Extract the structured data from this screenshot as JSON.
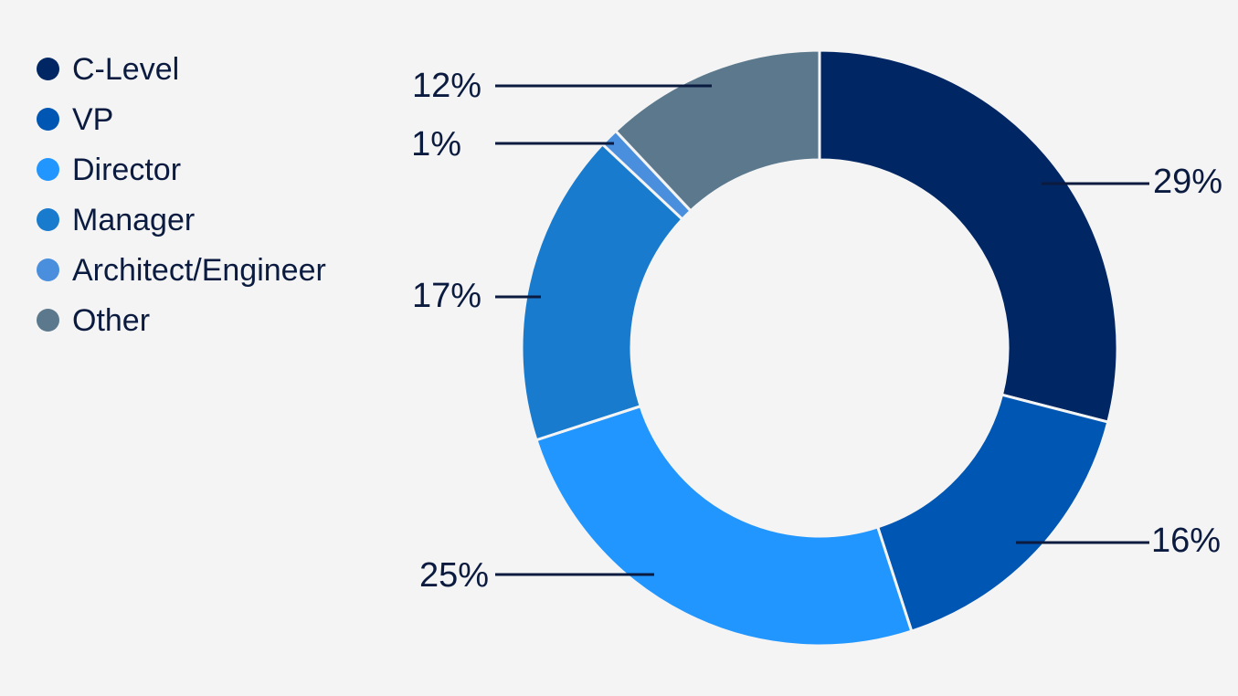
{
  "chart_data": {
    "type": "pie",
    "donut": true,
    "legend_position": "top-left",
    "slices": [
      {
        "name": "C-Level",
        "value": 29,
        "label": "29%",
        "color": "#002664"
      },
      {
        "name": "VP",
        "value": 16,
        "label": "16%",
        "color": "#0056b3"
      },
      {
        "name": "Director",
        "value": 25,
        "label": "25%",
        "color": "#2196ff"
      },
      {
        "name": "Manager",
        "value": 17,
        "label": "17%",
        "color": "#187bcd"
      },
      {
        "name": "Architect/Engineer",
        "value": 1,
        "label": "1%",
        "color": "#4a8fde"
      },
      {
        "name": "Other",
        "value": 12,
        "label": "12%",
        "color": "#5b788d"
      }
    ]
  }
}
